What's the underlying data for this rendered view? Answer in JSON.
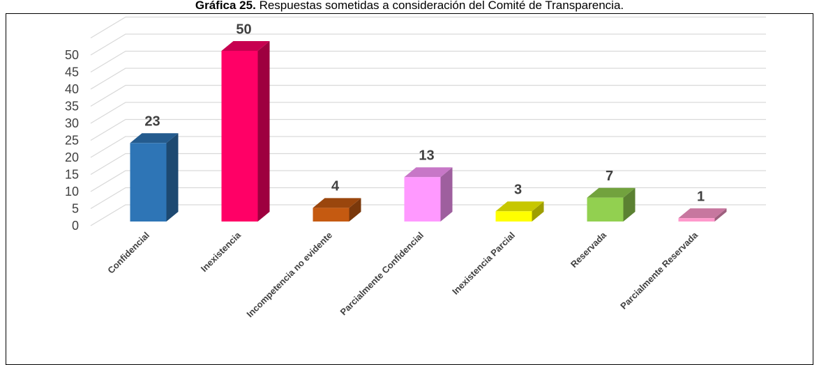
{
  "chart_data": {
    "type": "bar3d",
    "title_label": "Gráfica 25.",
    "title": "Respuestas sometidas a consideración del Comité de Transparencia.",
    "categories": [
      "Confidencial",
      "Inexistencia",
      "Incompetencia no evidente",
      "Parcialmente Confidencial",
      "Inexistencia Parcial",
      "Reservada",
      "Parcialmente Reservada"
    ],
    "values": [
      23,
      50,
      4,
      13,
      3,
      7,
      1
    ],
    "colors": [
      "#2e75b6",
      "#ff0066",
      "#c55a11",
      "#ff99ff",
      "#ffff00",
      "#92d050",
      "#ff99cc"
    ],
    "ylim": [
      0,
      55
    ],
    "yticks": [
      0,
      5,
      10,
      15,
      20,
      25,
      30,
      35,
      40,
      45,
      50
    ],
    "grid": true
  }
}
